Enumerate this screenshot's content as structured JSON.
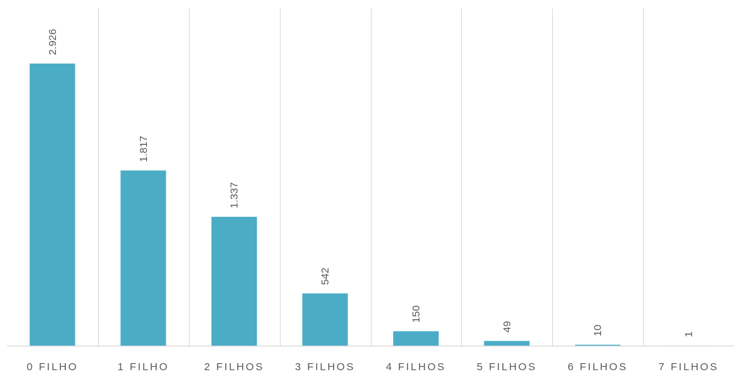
{
  "chart_data": {
    "type": "bar",
    "title": "",
    "xlabel": "",
    "ylabel": "",
    "categories": [
      "0 FILHO",
      "1 FILHO",
      "2 FILHOS",
      "3 FILHOS",
      "4 FILHOS",
      "5 FILHOS",
      "6 FILHOS",
      "7 FILHOS"
    ],
    "values": [
      2926,
      1817,
      1337,
      542,
      150,
      49,
      10,
      1
    ],
    "data_labels": [
      "2.926",
      "1.817",
      "1.337",
      "542",
      "150",
      "49",
      "10",
      "1"
    ],
    "ylim": [
      0,
      3000
    ],
    "grid": "vertical separators between categories",
    "legend": "none",
    "colors": {
      "bar": "#4bacc6",
      "grid": "#d9d9d9",
      "text": "#595959"
    }
  }
}
